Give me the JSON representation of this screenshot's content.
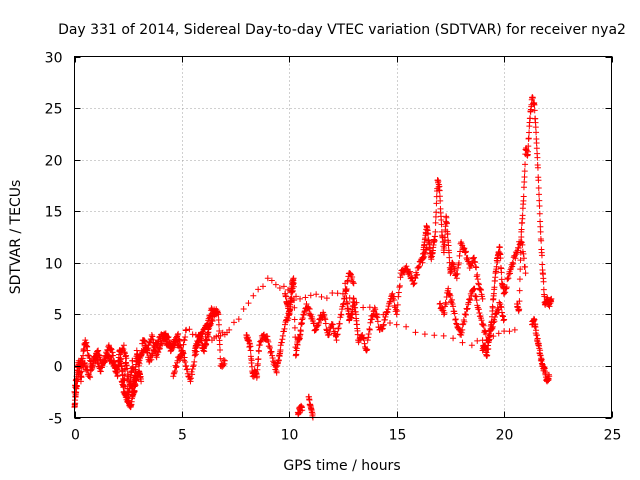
{
  "chart_data": {
    "type": "scatter",
    "title": "Day 331 of 2014, Sidereal Day-to-day VTEC variation (SDTVAR) for receiver nya2",
    "xlabel": "GPS time / hours",
    "ylabel": "SDTVAR / TECUs",
    "xlim": [
      0,
      25
    ],
    "ylim": [
      -5,
      30
    ],
    "x_ticks": [
      "0",
      "5",
      "10",
      "15",
      "20",
      "25"
    ],
    "y_ticks": [
      "-5",
      "0",
      "5",
      "10",
      "15",
      "20",
      "25",
      "30"
    ],
    "grid": true,
    "marker": "+",
    "color": "#ff0000",
    "series": [
      {
        "name": "SDTVAR",
        "segments": [
          {
            "x": [
              0.0,
              0.1,
              0.2,
              0.3,
              0.4,
              0.5,
              0.6,
              0.8,
              1.0,
              1.2,
              1.4,
              1.6,
              1.8,
              2.0,
              2.1,
              2.2,
              2.3,
              2.4,
              2.5,
              2.6,
              2.7,
              2.8,
              2.9,
              3.0,
              3.2,
              3.4,
              3.6,
              3.8,
              4.0,
              4.2,
              4.4,
              4.6,
              4.8,
              5.0,
              5.2,
              5.4,
              5.6,
              5.8,
              6.0,
              6.2,
              6.4,
              6.6
            ],
            "y": [
              -2.5,
              -1.0,
              0.5,
              -1.5,
              1.0,
              2.5,
              1.5,
              0.0,
              1.0,
              -0.5,
              0.5,
              2.0,
              1.0,
              -1.0,
              1.5,
              0.0,
              -2.0,
              1.0,
              -3.0,
              -1.5,
              0.5,
              -2.5,
              1.5,
              0.0,
              2.5,
              1.5,
              3.0,
              1.0,
              2.0,
              3.0,
              2.5,
              2.0,
              3.0,
              1.5,
              0.0,
              -1.5,
              1.0,
              2.5,
              3.5,
              4.0,
              5.5,
              5.0
            ]
          },
          {
            "x": [
              0.0,
              0.05,
              0.1,
              0.2,
              0.3,
              0.5,
              0.7,
              0.9,
              1.1,
              1.3,
              1.5,
              1.7,
              1.9,
              2.1,
              2.3,
              2.5,
              2.7,
              2.9,
              3.1,
              3.3,
              3.5,
              3.7,
              3.9,
              4.1,
              4.3,
              4.5,
              4.7,
              4.9
            ],
            "y": [
              -4.0,
              -3.0,
              -2.0,
              -0.5,
              0.5,
              0.0,
              -1.0,
              0.5,
              1.5,
              0.0,
              1.0,
              0.5,
              -0.5,
              0.5,
              2.0,
              -1.0,
              -2.5,
              0.5,
              1.0,
              2.0,
              0.5,
              1.5,
              2.5,
              3.0,
              2.0,
              1.5,
              2.5,
              2.0
            ]
          },
          {
            "x": [
              2.2,
              2.3,
              2.4,
              2.5,
              2.6,
              2.7,
              2.8,
              2.9,
              3.0,
              3.1
            ],
            "y": [
              -1.5,
              -2.5,
              -3.0,
              -3.5,
              -4.0,
              -3.0,
              -2.0,
              -1.0,
              -0.5,
              -1.5
            ]
          },
          {
            "x": [
              5.6,
              5.7,
              5.8,
              5.9,
              6.0,
              6.1,
              6.2,
              6.3,
              6.5,
              6.6,
              6.7,
              6.8,
              7.0
            ],
            "y": [
              1.5,
              2.0,
              3.0,
              2.5,
              1.5,
              2.0,
              3.0,
              4.0,
              5.0,
              5.5,
              5.0,
              0.0,
              0.5
            ]
          },
          {
            "x": [
              8.0,
              8.1,
              8.2,
              8.3,
              8.4,
              8.5,
              8.6,
              8.8,
              9.0,
              9.2,
              9.4,
              9.5,
              9.6,
              9.8,
              10.0,
              10.1,
              10.2
            ],
            "y": [
              3.0,
              2.5,
              1.5,
              -1.0,
              -0.5,
              -1.0,
              2.0,
              3.0,
              2.5,
              1.0,
              -0.5,
              0.5,
              2.0,
              4.0,
              5.0,
              6.5,
              8.0
            ]
          },
          {
            "x": [
              9.8,
              9.9,
              10.0,
              10.1,
              10.2,
              10.3,
              10.4,
              10.5,
              10.6,
              10.8,
              11.0,
              11.2,
              11.4,
              11.6,
              11.8,
              12.0,
              12.2,
              12.4,
              12.6,
              12.8,
              13.0
            ],
            "y": [
              7.0,
              6.0,
              5.0,
              7.5,
              8.5,
              1.0,
              2.5,
              3.0,
              4.5,
              6.0,
              5.0,
              3.5,
              4.5,
              5.0,
              3.0,
              4.0,
              2.5,
              5.0,
              7.0,
              9.0,
              8.0
            ]
          },
          {
            "x": [
              10.4,
              10.5,
              10.6
            ],
            "y": [
              -4.5,
              -4.0,
              -4.3
            ]
          },
          {
            "x": [
              10.9,
              11.0,
              11.1
            ],
            "y": [
              -3.0,
              -4.0,
              -5.0
            ]
          },
          {
            "x": [
              12.6,
              12.7,
              12.8,
              12.9,
              13.0,
              13.1,
              13.2,
              13.4,
              13.6,
              13.8,
              14.0,
              14.2,
              14.4,
              14.6,
              14.8,
              15.0,
              15.2,
              15.4,
              15.6,
              15.8,
              16.0,
              16.2,
              16.4
            ],
            "y": [
              8.0,
              6.0,
              4.5,
              5.0,
              6.5,
              5.0,
              2.5,
              3.0,
              1.5,
              4.5,
              5.5,
              3.5,
              4.0,
              5.5,
              7.0,
              5.0,
              9.0,
              9.5,
              9.0,
              8.0,
              9.5,
              10.5,
              11.5
            ]
          },
          {
            "x": [
              16.2,
              16.3,
              16.4,
              16.5,
              16.6,
              16.7,
              16.8,
              16.9,
              17.0,
              17.1,
              17.2,
              17.3,
              17.4,
              17.5,
              17.6,
              17.8,
              18.0,
              18.2,
              18.4,
              18.6,
              18.8,
              19.0
            ],
            "y": [
              10.0,
              12.0,
              13.5,
              12.0,
              10.5,
              11.5,
              13.0,
              18.0,
              17.0,
              13.0,
              11.0,
              14.5,
              12.0,
              9.0,
              10.0,
              8.5,
              12.0,
              11.0,
              9.5,
              10.5,
              8.0,
              6.5
            ]
          },
          {
            "x": [
              17.0,
              17.2,
              17.4,
              17.6,
              17.8,
              18.0,
              18.2,
              18.4,
              18.6,
              18.8,
              19.0,
              19.2,
              19.4,
              19.6,
              19.8,
              20.0
            ],
            "y": [
              6.0,
              5.0,
              7.5,
              6.0,
              4.0,
              3.0,
              5.0,
              6.5,
              7.5,
              5.5,
              4.0,
              2.5,
              3.5,
              5.0,
              6.0,
              4.5
            ]
          },
          {
            "x": [
              19.0,
              19.1,
              19.2,
              19.3,
              19.4,
              19.5,
              19.6,
              19.7,
              19.8,
              19.9,
              20.0,
              20.2,
              20.4,
              20.6,
              20.8,
              21.0
            ],
            "y": [
              1.5,
              2.0,
              1.0,
              2.5,
              4.0,
              6.5,
              9.0,
              10.5,
              11.5,
              8.0,
              7.0,
              8.5,
              10.0,
              11.0,
              12.5,
              9.0
            ]
          },
          {
            "x": [
              20.6,
              20.7,
              20.8,
              20.9,
              21.0,
              21.1,
              21.2,
              21.3,
              21.4,
              21.5,
              21.6,
              21.7,
              21.8,
              21.9,
              22.0,
              22.1,
              22.2
            ],
            "y": [
              6.0,
              5.5,
              13.0,
              16.0,
              21.0,
              20.5,
              24.0,
              26.0,
              25.5,
              22.0,
              18.0,
              13.0,
              9.0,
              6.0,
              6.5,
              6.0,
              6.5
            ]
          },
          {
            "x": [
              21.3,
              21.4,
              21.5,
              21.6,
              21.7,
              21.8,
              21.9,
              22.0,
              22.1
            ],
            "y": [
              4.0,
              4.5,
              3.0,
              2.0,
              1.0,
              0.0,
              -0.5,
              -1.5,
              -1.0
            ]
          },
          {
            "x": [
              4.6,
              4.8,
              5.0,
              5.2,
              6.4,
              7.2,
              9.0,
              10.5,
              12.5,
              15.0,
              18.5,
              20.5
            ],
            "y": [
              -1.0,
              0.5,
              1.0,
              3.5,
              2.5,
              3.5,
              8.5,
              6.5,
              7.0,
              4.0,
              2.0,
              3.5
            ]
          }
        ]
      }
    ]
  }
}
